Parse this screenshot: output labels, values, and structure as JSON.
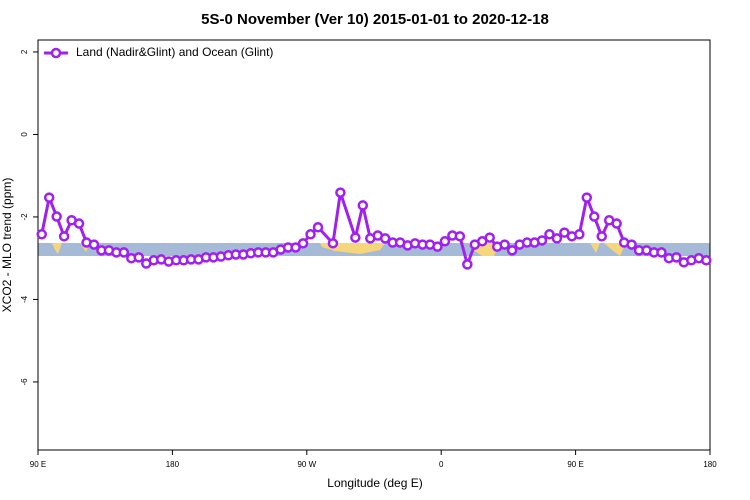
{
  "chart_data": {
    "type": "line",
    "title": "5S-0 November (Ver 10)   2015-01-01 to 2020-12-18",
    "xlabel": "Longitude (deg E)",
    "ylabel": "XCO2 - MLO trend (ppm)",
    "x": [
      92.5,
      97.5,
      102.5,
      107.5,
      112.5,
      117.5,
      122.5,
      127.5,
      132.5,
      137.5,
      142.5,
      147.5,
      152.5,
      157.5,
      162.5,
      167.5,
      172.5,
      177.5,
      182.5,
      187.5,
      192.5,
      197.5,
      202.5,
      207.5,
      212.5,
      217.5,
      222.5,
      227.5,
      232.5,
      237.5,
      242.5,
      247.5,
      252.5,
      257.5,
      262.5,
      267.5,
      272.5,
      277.5,
      287.5,
      292.5,
      302.5,
      307.5,
      312.5,
      317.5,
      322.5,
      327.5,
      332.5,
      337.5,
      342.5,
      347.5,
      352.5,
      357.5,
      362.5,
      367.5,
      372.5,
      377.5,
      382.5,
      387.5,
      392.5,
      397.5,
      402.5,
      407.5,
      412.5,
      417.5,
      422.5,
      427.5,
      432.5,
      437.5,
      442.5,
      447.5,
      452.5,
      457.5,
      462.5,
      467.5,
      472.5,
      477.5,
      482.5,
      487.5,
      492.5,
      497.5,
      502.5,
      507.5,
      512.5,
      517.5,
      522.5,
      527.5,
      532.5,
      537.5
    ],
    "series": [
      {
        "name": "Land (Nadir&Glint) and Ocean (Glint)",
        "color": "#a020f0",
        "values": [
          -2.42,
          -1.53,
          -1.99,
          -2.47,
          -2.08,
          -2.16,
          -2.62,
          -2.67,
          -2.81,
          -2.81,
          -2.86,
          -2.86,
          -3.0,
          -2.98,
          -3.13,
          -3.05,
          -3.03,
          -3.08,
          -3.05,
          -3.05,
          -3.03,
          -3.03,
          -2.98,
          -2.98,
          -2.96,
          -2.93,
          -2.91,
          -2.91,
          -2.88,
          -2.86,
          -2.86,
          -2.86,
          -2.79,
          -2.74,
          -2.74,
          -2.64,
          -2.42,
          -2.25,
          -2.64,
          -1.41,
          -2.5,
          -1.72,
          -2.52,
          -2.45,
          -2.52,
          -2.62,
          -2.62,
          -2.69,
          -2.64,
          -2.67,
          -2.67,
          -2.72,
          -2.59,
          -2.45,
          -2.47,
          -3.15,
          -2.67,
          -2.59,
          -2.5,
          -2.72,
          -2.67,
          -2.81,
          -2.67,
          -2.62,
          -2.62,
          -2.57,
          -2.42,
          -2.52,
          -2.38,
          -2.47,
          -2.42,
          -1.53,
          -1.99,
          -2.47,
          -2.08,
          -2.16,
          -2.62,
          -2.67,
          -2.81,
          -2.81,
          -2.86,
          -2.86,
          -3.0,
          -2.98,
          -3.1,
          -3.05,
          -3.0,
          -3.05
        ]
      }
    ],
    "xlim": [
      90,
      540
    ],
    "ylim": [
      -7.65,
      2.29
    ],
    "xticks": [
      {
        "value": 90,
        "label": "90 E"
      },
      180,
      {
        "value": 270,
        "label": "90 W"
      },
      {
        "value": 360,
        "label": "0"
      },
      {
        "value": 450,
        "label": "90 E"
      },
      {
        "value": 540,
        "label": "180"
      }
    ],
    "yticks": [
      -6,
      -4,
      -2,
      0,
      2
    ],
    "legend": "top-left",
    "grid": false
  }
}
